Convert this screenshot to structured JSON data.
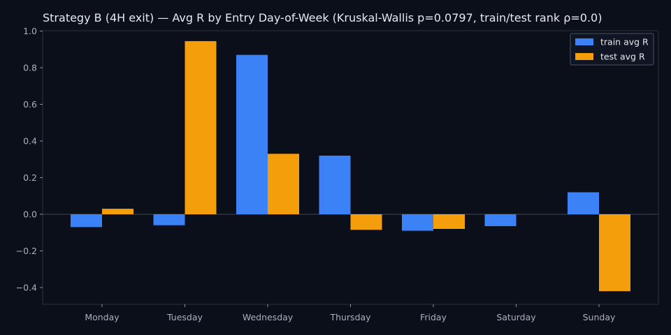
{
  "chart_data": {
    "type": "bar",
    "title": "Strategy B (4H exit) — Avg R by Entry Day-of-Week (Kruskal-Wallis p=0.0797, train/test rank ρ=0.0)",
    "xlabel": "",
    "ylabel": "",
    "categories": [
      "Monday",
      "Tuesday",
      "Wednesday",
      "Thursday",
      "Friday",
      "Saturday",
      "Sunday"
    ],
    "series": [
      {
        "name": "train avg R",
        "color": "#3b82f6",
        "values": [
          -0.07,
          -0.06,
          0.87,
          0.32,
          -0.09,
          -0.065,
          0.12
        ]
      },
      {
        "name": "test avg R",
        "color": "#f59e0b",
        "values": [
          0.03,
          0.945,
          0.33,
          -0.085,
          -0.08,
          null,
          -0.42
        ]
      }
    ],
    "ylim": [
      -0.49,
      1.0
    ],
    "yticks": [
      1.0,
      0.8,
      0.6,
      0.4,
      0.2,
      0.0,
      -0.2,
      -0.4
    ],
    "ytick_labels": [
      "1.0",
      "0.8",
      "0.6",
      "0.4",
      "0.2",
      "0.0",
      "−0.2",
      "−0.4"
    ],
    "grid": false,
    "zero_line": true,
    "legend_position": "top-right"
  }
}
